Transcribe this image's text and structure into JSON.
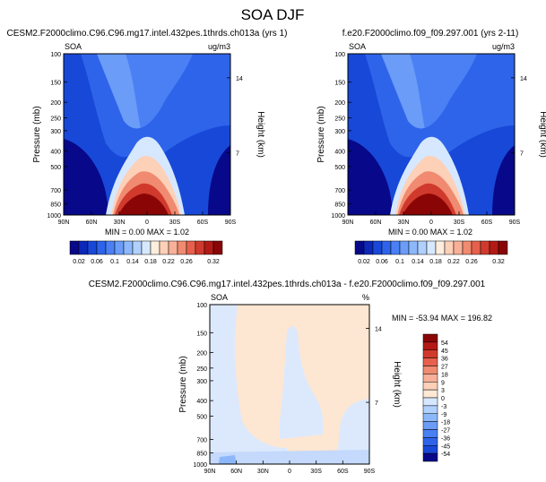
{
  "title": "SOA DJF",
  "chart_data": [
    {
      "type": "heatmap",
      "name": "panel-left",
      "title": "CESM2.F2000climo.C96.C96.mg17.intel.432pes.1thrds.ch013a (yrs 1)",
      "left_label": "SOA",
      "right_label": "ug/m3",
      "ylabel": "Pressure (mb)",
      "ylabel_right": "Height (km)",
      "xticks": [
        "90N",
        "60N",
        "30N",
        "0",
        "30S",
        "60S",
        "90S"
      ],
      "yticks": [
        "100",
        "150",
        "200",
        "250",
        "300",
        "400",
        "500",
        "700",
        "850",
        "1000"
      ],
      "right_ticks": [
        "14",
        "7"
      ],
      "min_max_text": "MIN =  0.00   MAX =   1.02",
      "min": 0.0,
      "max": 1.02
    },
    {
      "type": "heatmap",
      "name": "panel-right",
      "title": "f.e20.F2000climo.f09_f09.297.001 (yrs 2-11)",
      "left_label": "SOA",
      "right_label": "ug/m3",
      "ylabel": "Pressure (mb)",
      "ylabel_right": "Height (km)",
      "xticks": [
        "90N",
        "60N",
        "30N",
        "0",
        "30S",
        "60S",
        "90S"
      ],
      "yticks": [
        "100",
        "150",
        "200",
        "250",
        "300",
        "400",
        "500",
        "700",
        "850",
        "1000"
      ],
      "right_ticks": [
        "14",
        "7"
      ],
      "min_max_text": "MIN =  0.00   MAX =   1.02",
      "min": 0.0,
      "max": 1.02
    },
    {
      "type": "heatmap",
      "name": "panel-diff",
      "title": "CESM2.F2000climo.C96.C96.mg17.intel.432pes.1thrds.ch013a - f.e20.F2000climo.f09_f09.297.001",
      "left_label": "SOA",
      "right_label": "%",
      "ylabel": "Pressure (mb)",
      "ylabel_right": "Height (km)",
      "xticks": [
        "90N",
        "60N",
        "30N",
        "0",
        "30S",
        "60S",
        "90S"
      ],
      "yticks": [
        "100",
        "150",
        "200",
        "250",
        "300",
        "400",
        "500",
        "700",
        "850",
        "1000"
      ],
      "right_ticks": [
        "14",
        "7"
      ],
      "min_max_text": "MIN = -53.94  MAX = 196.82",
      "min": -53.94,
      "max": 196.82
    }
  ],
  "colorbar_top": {
    "labels": [
      "0.02",
      "0.06",
      "0.1",
      "0.14",
      "0.18",
      "0.22",
      "0.26",
      "0.32"
    ],
    "colors": [
      "#08088a",
      "#0c28b8",
      "#1848d8",
      "#2e64ea",
      "#4a80f4",
      "#6a9cf8",
      "#8cb8fb",
      "#b0d0fd",
      "#d6e8ff",
      "#ffeedd",
      "#fdd0b8",
      "#f8b098",
      "#f08a70",
      "#e6604c",
      "#d03a2c",
      "#b21a16",
      "#8a0606"
    ]
  },
  "colorbar_diff": {
    "labels": [
      "54",
      "45",
      "36",
      "27",
      "18",
      "9",
      "3",
      "0",
      "-3",
      "-9",
      "-18",
      "-27",
      "-36",
      "-45",
      "-54"
    ],
    "colors": [
      "#8a0606",
      "#b21a16",
      "#d03a2c",
      "#e6604c",
      "#f08a70",
      "#f8b098",
      "#fdd0b8",
      "#ffe8d4",
      "#d6e8ff",
      "#b0d0fd",
      "#8cb8fb",
      "#6a9cf8",
      "#4a80f4",
      "#2e64ea",
      "#1848d8",
      "#08088a"
    ]
  }
}
